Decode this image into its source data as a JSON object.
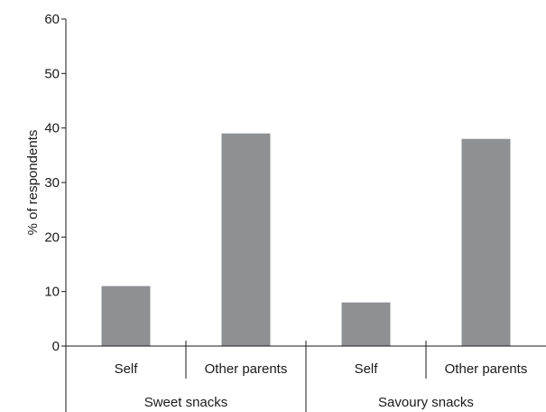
{
  "chart_data": {
    "type": "bar",
    "title": "",
    "xlabel": "",
    "ylabel": "% of respondents",
    "ylim": [
      0,
      60
    ],
    "yticks": [
      0,
      10,
      20,
      30,
      40,
      50,
      60
    ],
    "grid": false,
    "categories": [
      "Self",
      "Other parents",
      "Self",
      "Other parents"
    ],
    "groups": [
      {
        "label": "Sweet snacks",
        "categories": [
          "Self",
          "Other parents"
        ],
        "values": [
          11,
          39
        ]
      },
      {
        "label": "Savoury snacks",
        "categories": [
          "Self",
          "Other parents"
        ],
        "values": [
          8,
          38
        ]
      }
    ],
    "series": [
      {
        "values": [
          11,
          39,
          8,
          38
        ]
      }
    ],
    "colors": {
      "bar": "#8f9094",
      "axis": "#1a1a1a"
    }
  }
}
